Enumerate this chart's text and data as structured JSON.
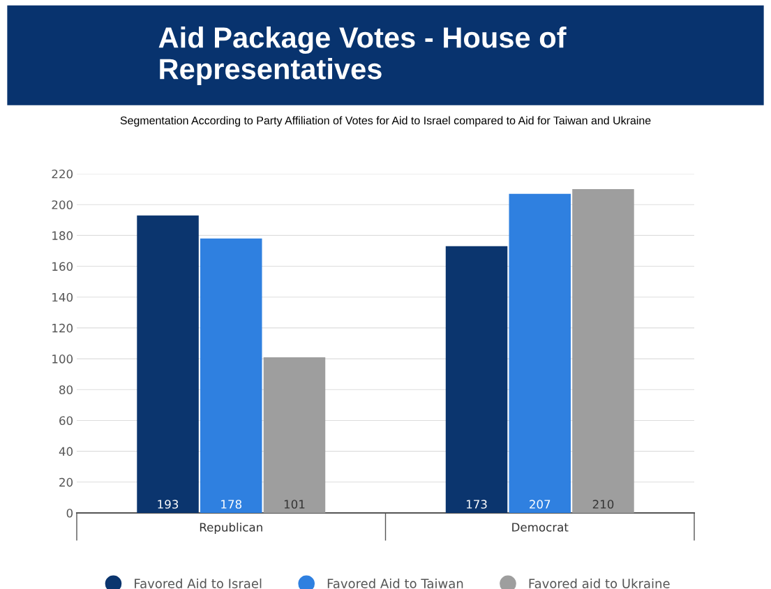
{
  "chart_data": {
    "type": "bar",
    "title": "Aid Package Votes - House of Representatives",
    "subtitle": "Segmentation According to Party Affiliation of Votes for Aid to Israel compared to Aid for Taiwan and Ukraine",
    "categories": [
      "Republican",
      "Democrat"
    ],
    "series": [
      {
        "name": "Favored Aid to Israel",
        "color": "#0b356e",
        "values": [
          193,
          173
        ]
      },
      {
        "name": "Favored Aid to Taiwan",
        "color": "#2f80e0",
        "values": [
          178,
          207
        ]
      },
      {
        "name": "Favored aid to Ukraine",
        "color": "#9e9e9e",
        "values": [
          101,
          210
        ]
      }
    ],
    "ylim": [
      0,
      220
    ],
    "yticks": [
      0,
      20,
      40,
      60,
      80,
      100,
      120,
      140,
      160,
      180,
      200,
      220
    ],
    "grid": "y",
    "legend": "bottom",
    "data_labels": true
  }
}
